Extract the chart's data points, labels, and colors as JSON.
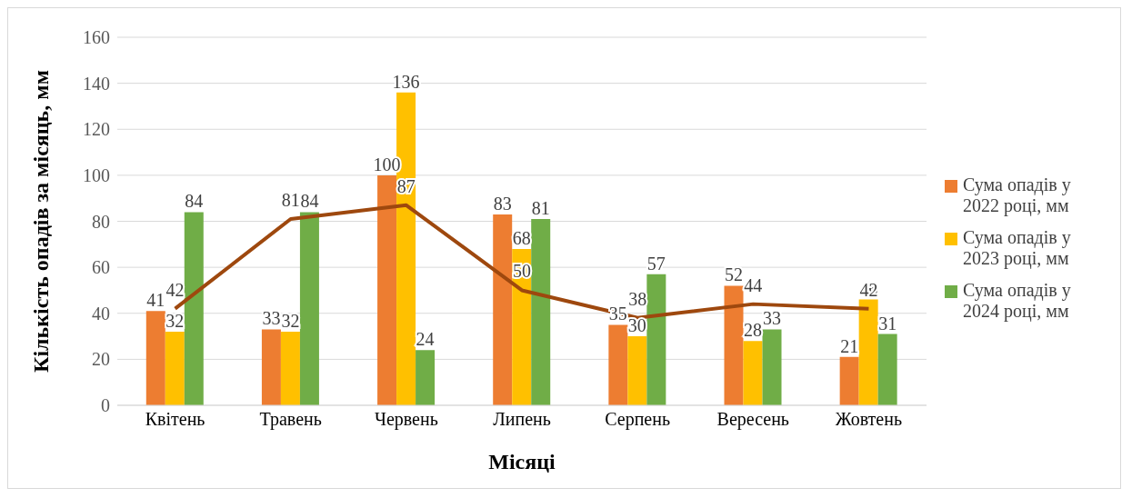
{
  "chart_data": {
    "type": "bar",
    "xlabel": "Місяці",
    "ylabel": "Кількість опадів за місяць, мм",
    "categories": [
      "Квітень",
      "Травень",
      "Червень",
      "Липень",
      "Серпень",
      "Вересень",
      "Жовтень"
    ],
    "series": [
      {
        "name": "Сума опадів у 2022 році, мм",
        "color": "#ed7d31",
        "values": [
          41,
          33,
          100,
          83,
          35,
          52,
          21
        ]
      },
      {
        "name": "Сума опадів у 2023 році, мм",
        "color": "#ffc000",
        "values": [
          32,
          32,
          136,
          68,
          30,
          28,
          46
        ]
      },
      {
        "name": "Сума опадів у 2024 році, мм",
        "color": "#70ad47",
        "values": [
          84,
          84,
          24,
          81,
          57,
          33,
          31
        ]
      },
      {
        "type": "line",
        "color": "#9e480e",
        "values": [
          42,
          81,
          87,
          50,
          38,
          44,
          42
        ]
      }
    ],
    "ylim": [
      0,
      160
    ],
    "yticks": [
      0,
      20,
      40,
      60,
      80,
      100,
      120,
      140,
      160
    ],
    "grid": "y",
    "legend": "right",
    "data_labels": true,
    "marker": "none"
  }
}
